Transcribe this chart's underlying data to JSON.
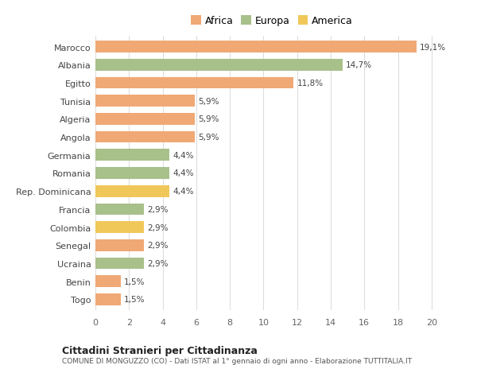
{
  "categories": [
    "Marocco",
    "Albania",
    "Egitto",
    "Tunisia",
    "Algeria",
    "Angola",
    "Germania",
    "Romania",
    "Rep. Dominicana",
    "Francia",
    "Colombia",
    "Senegal",
    "Ucraina",
    "Benin",
    "Togo"
  ],
  "values": [
    19.1,
    14.7,
    11.8,
    5.9,
    5.9,
    5.9,
    4.4,
    4.4,
    4.4,
    2.9,
    2.9,
    2.9,
    2.9,
    1.5,
    1.5
  ],
  "colors": [
    "#F0A875",
    "#A8C08A",
    "#F0A875",
    "#F0A875",
    "#F0A875",
    "#F0A875",
    "#A8C08A",
    "#A8C08A",
    "#F0C85A",
    "#A8C08A",
    "#F0C85A",
    "#F0A875",
    "#A8C08A",
    "#F0A875",
    "#F0A875"
  ],
  "legend_labels": [
    "Africa",
    "Europa",
    "America"
  ],
  "legend_colors": [
    "#F0A875",
    "#A8C08A",
    "#F0C85A"
  ],
  "title": "Cittadini Stranieri per Cittadinanza",
  "subtitle": "COMUNE DI MONGUZZO (CO) - Dati ISTAT al 1° gennaio di ogni anno - Elaborazione TUTTITALIA.IT",
  "xlim": [
    0,
    21
  ],
  "xticks": [
    0,
    2,
    4,
    6,
    8,
    10,
    12,
    14,
    16,
    18,
    20
  ],
  "background_color": "#FFFFFF",
  "bar_height": 0.65,
  "grid_color": "#DDDDDD"
}
